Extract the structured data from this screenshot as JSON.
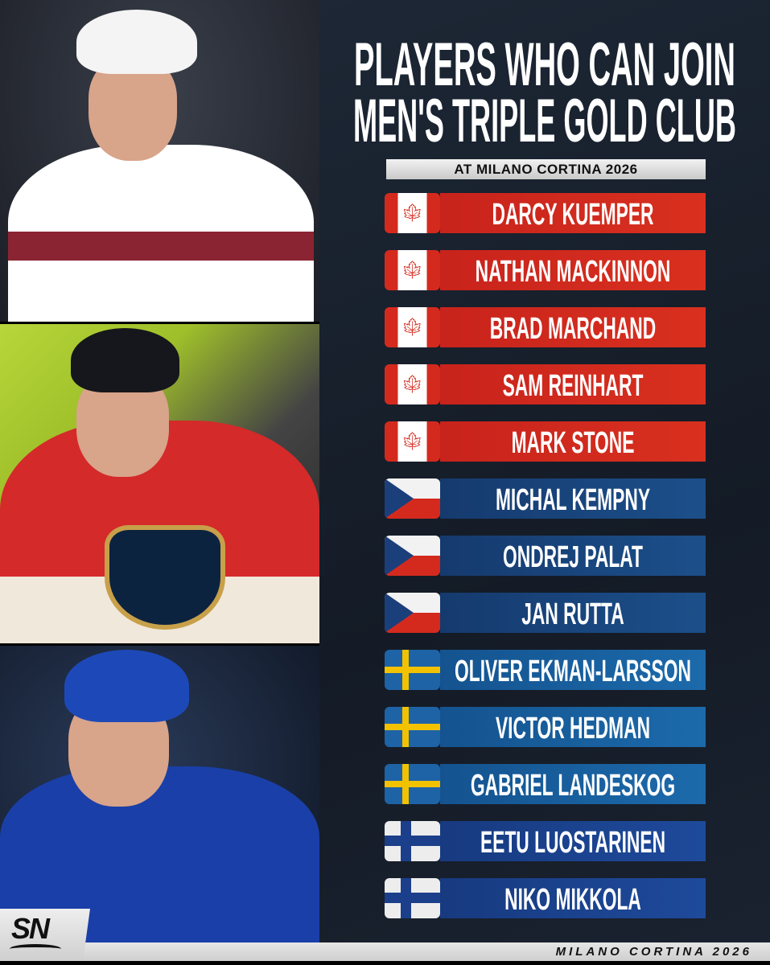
{
  "header": {
    "title_line1": "PLAYERS WHO CAN JOIN",
    "title_line2": "MEN'S TRIPLE GOLD CLUB",
    "subtitle": "AT MILANO CORTINA 2026"
  },
  "players": [
    {
      "name": "DARCY KUEMPER",
      "country": "Canada"
    },
    {
      "name": "NATHAN MACKINNON",
      "country": "Canada"
    },
    {
      "name": "BRAD MARCHAND",
      "country": "Canada"
    },
    {
      "name": "SAM REINHART",
      "country": "Canada"
    },
    {
      "name": "MARK STONE",
      "country": "Canada"
    },
    {
      "name": "MICHAL KEMPNY",
      "country": "Czechia"
    },
    {
      "name": "ONDREJ PALAT",
      "country": "Czechia"
    },
    {
      "name": "JAN RUTTA",
      "country": "Czechia"
    },
    {
      "name": "OLIVER EKMAN-LARSSON",
      "country": "Sweden"
    },
    {
      "name": "VICTOR HEDMAN",
      "country": "Sweden"
    },
    {
      "name": "GABRIEL LANDESKOG",
      "country": "Sweden"
    },
    {
      "name": "EETU LUOSTARINEN",
      "country": "Finland"
    },
    {
      "name": "NIKO MIKKOLA",
      "country": "Finland"
    }
  ],
  "footer": {
    "text": "MILANO CORTINA 2026",
    "logo": "SN"
  },
  "colors": {
    "canada": "#d42a1e",
    "czech_bar": "#1a4680",
    "sweden_bar": "#1a64a6",
    "finland_bar": "#1b4593",
    "background": "#18202c"
  }
}
